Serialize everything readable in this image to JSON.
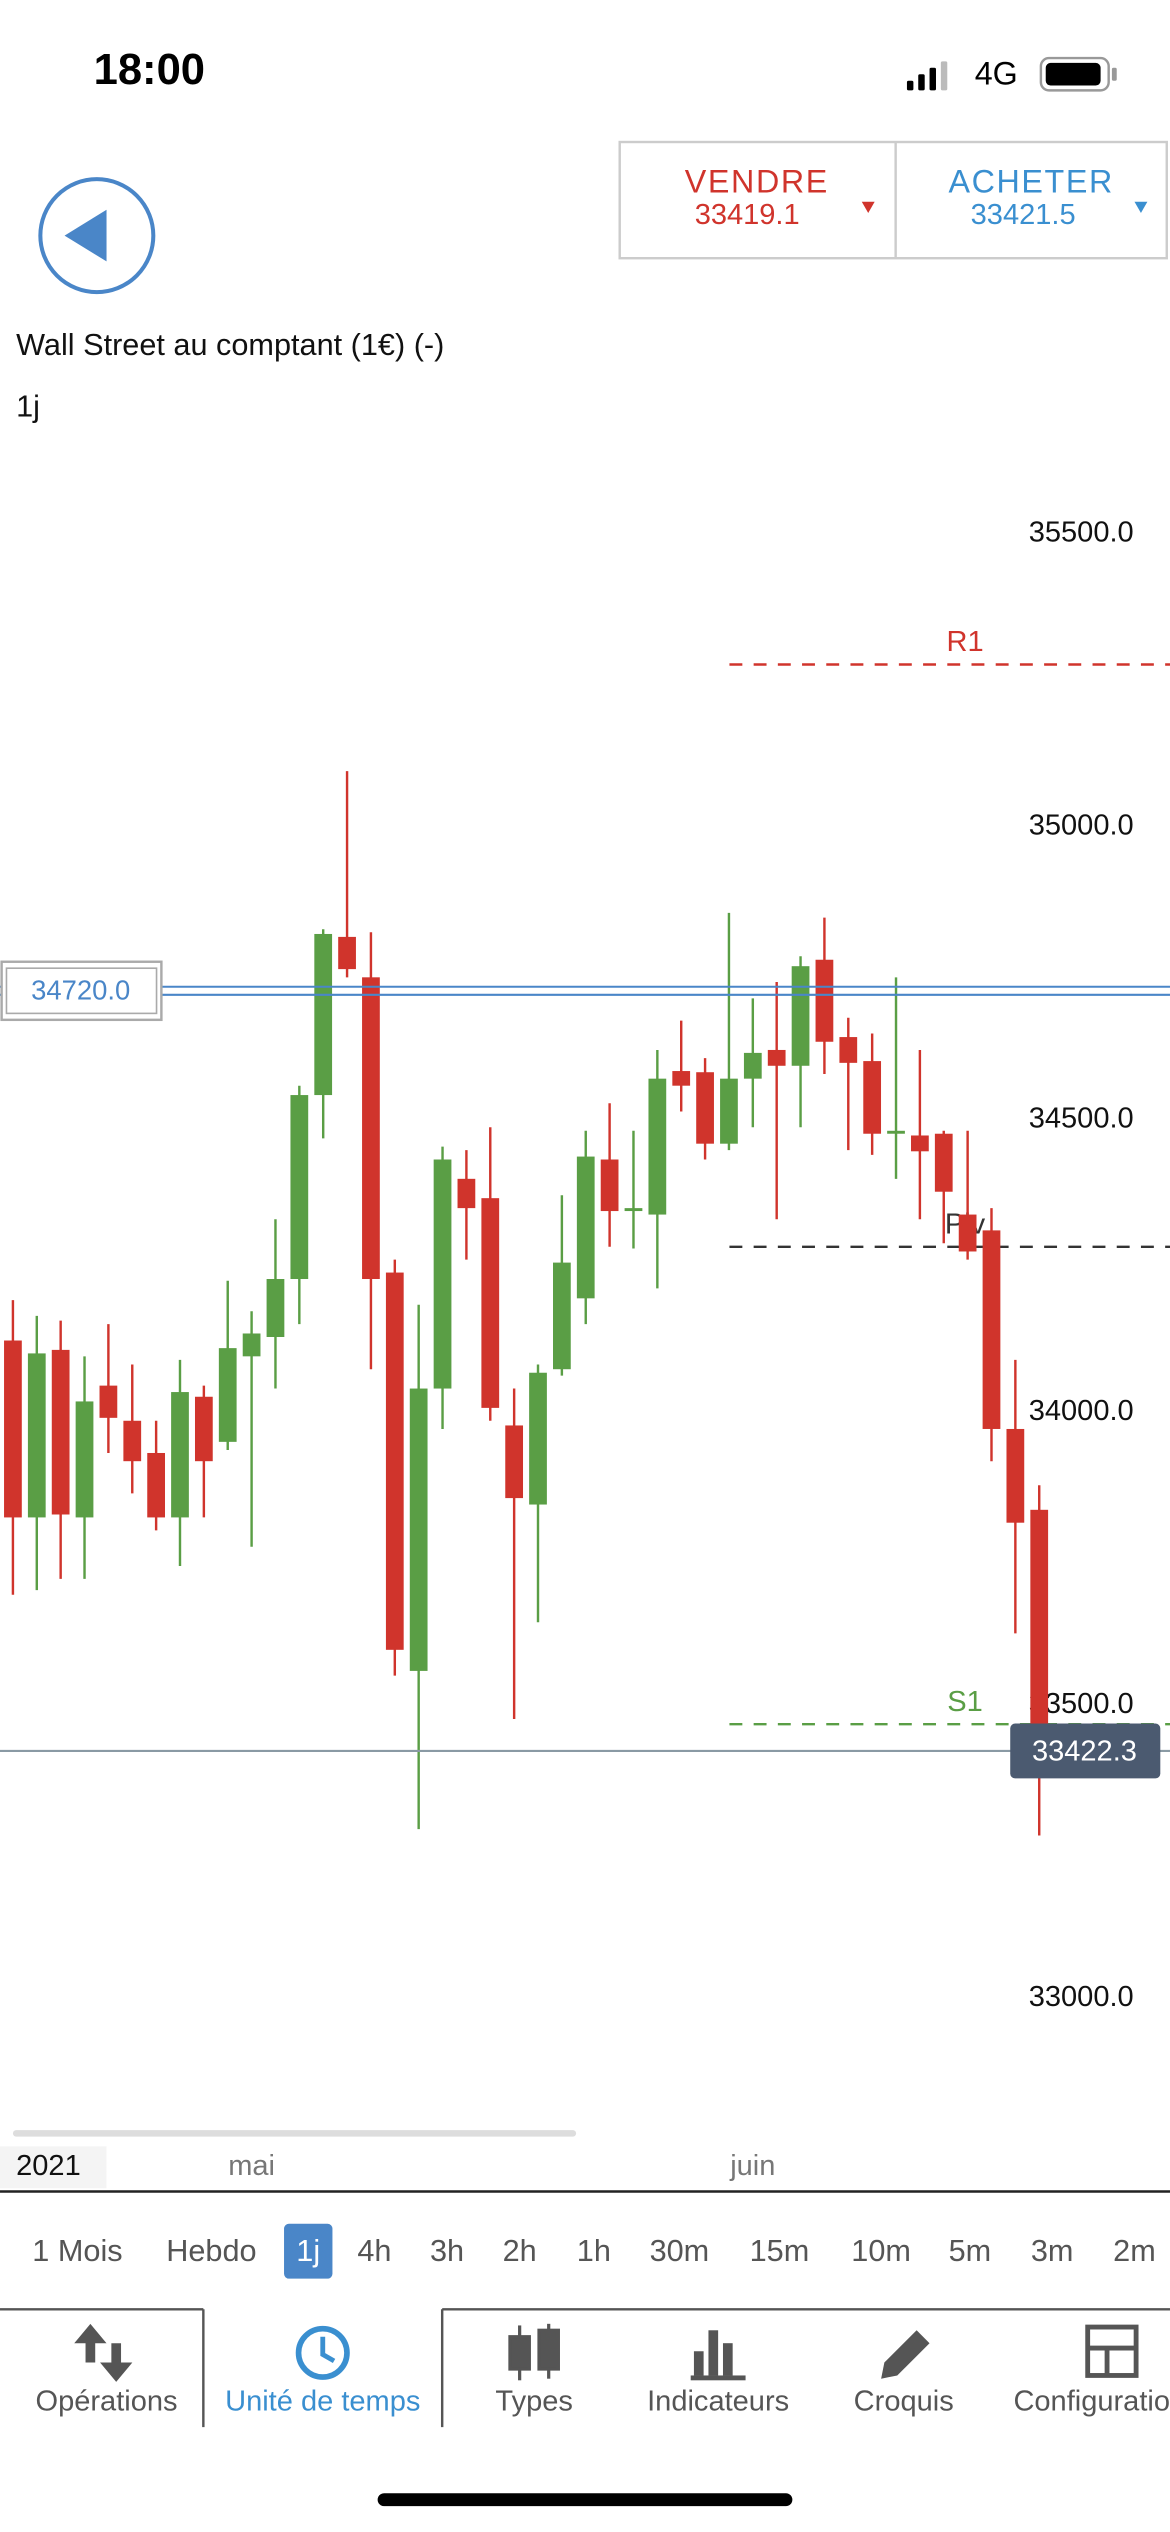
{
  "status_bar": {
    "time": "18:00",
    "network": "4G"
  },
  "quote": {
    "sell": {
      "label": "VENDRE",
      "price": 33419.1
    },
    "buy": {
      "label": "ACHETER",
      "price": 33421.5
    }
  },
  "instrument": {
    "title": "Wall Street au comptant (1€) (-)",
    "timeframe": "1j"
  },
  "chart_data": {
    "type": "candlestick",
    "categories": [
      null,
      null,
      null,
      null,
      null,
      null,
      null,
      null,
      null,
      null,
      "mai",
      null,
      null,
      null,
      null,
      null,
      null,
      null,
      null,
      null,
      null,
      null,
      null,
      null,
      null,
      null,
      null,
      null,
      null,
      null,
      null,
      "juin",
      null,
      null,
      null,
      null,
      null,
      null,
      null,
      null,
      null,
      null,
      null,
      null
    ],
    "open": [
      34123,
      33821,
      34107,
      33821,
      34046,
      33986,
      33931,
      33821,
      34027,
      33950,
      34096,
      34129,
      34228,
      34542,
      34812,
      34743,
      34239,
      33559,
      34041,
      34399,
      34366,
      33978,
      33843,
      34074,
      34195,
      34432,
      34344,
      34338,
      34583,
      34581,
      34459,
      34570,
      34619,
      34592,
      34773,
      34641,
      34600,
      34476,
      34473,
      34476,
      34338,
      34311,
      33972,
      33834
    ],
    "high": [
      34192,
      34165,
      34157,
      34096,
      34151,
      34082,
      33986,
      34090,
      34046,
      34225,
      34173,
      34330,
      34558,
      34825,
      35095,
      34820,
      34261,
      34184,
      34454,
      34448,
      34487,
      34041,
      34082,
      34371,
      34481,
      34528,
      34481,
      34619,
      34669,
      34605,
      34853,
      34707,
      34735,
      34779,
      34845,
      34674,
      34647,
      34743,
      34619,
      34481,
      34481,
      34349,
      34090,
      33876
    ],
    "low": [
      33689,
      33697,
      33716,
      33716,
      33931,
      33862,
      33799,
      33738,
      33821,
      33936,
      33771,
      34041,
      34151,
      34468,
      34743,
      34074,
      33551,
      33289,
      33972,
      34261,
      33986,
      33477,
      33642,
      34063,
      34151,
      34283,
      34280,
      34212,
      34514,
      34432,
      34448,
      34487,
      34330,
      34487,
      34578,
      34448,
      34440,
      34399,
      34330,
      34289,
      34261,
      33917,
      33623,
      33278
    ],
    "close": [
      33821,
      34101,
      33826,
      34019,
      33991,
      33917,
      33821,
      34035,
      33917,
      34110,
      34135,
      34228,
      34542,
      34817,
      34757,
      34228,
      33595,
      34041,
      34432,
      34349,
      34008,
      33854,
      34068,
      34256,
      34437,
      34344,
      34349,
      34570,
      34558,
      34459,
      34570,
      34614,
      34592,
      34762,
      34633,
      34597,
      34476,
      34481,
      34446,
      34377,
      34275,
      33972,
      33812,
      33422.3
    ],
    "up_color": "#5a9e45",
    "down_color": "#d0342c",
    "ylim": [
      32775,
      35640
    ],
    "yticks": [
      {
        "value": 33000,
        "label": "33000.0"
      },
      {
        "value": 33500,
        "label": "33500.0"
      },
      {
        "value": 34000,
        "label": "34000.0"
      },
      {
        "value": 34500,
        "label": "34500.0"
      },
      {
        "value": 35000,
        "label": "35000.0"
      },
      {
        "value": 35500,
        "label": "35500.0"
      }
    ],
    "year_label": "2021",
    "levels": [
      {
        "name": "R1",
        "value": 35277,
        "color": "#d0342c"
      },
      {
        "name": "Piv",
        "value": 34283,
        "color": "#333333"
      },
      {
        "name": "S1",
        "value": 33468,
        "color": "#5a9e45"
      }
    ],
    "alert": {
      "value": 34720,
      "label": "34720.0"
    },
    "last_price": 33422.3
  },
  "timeframes": {
    "items": [
      "1 Mois",
      "Hebdo",
      "1j",
      "4h",
      "3h",
      "2h",
      "1h",
      "30m",
      "15m",
      "10m",
      "5m",
      "3m",
      "2m"
    ],
    "selected": 2
  },
  "tabs": {
    "items": [
      "Opérations",
      "Unité de temps",
      "Types",
      "Indicateurs",
      "Croquis",
      "Configuration"
    ],
    "selected": 1
  }
}
